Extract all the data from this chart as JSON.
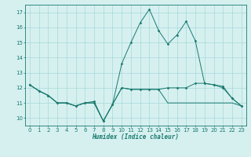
{
  "xlabel": "Humidex (Indice chaleur)",
  "x": [
    0,
    1,
    2,
    3,
    4,
    5,
    6,
    7,
    8,
    9,
    10,
    11,
    12,
    13,
    14,
    15,
    16,
    17,
    18,
    19,
    20,
    21,
    22,
    23
  ],
  "line1": [
    12.2,
    11.8,
    11.5,
    11.0,
    11.0,
    10.8,
    11.0,
    11.0,
    9.8,
    10.9,
    12.0,
    11.9,
    11.9,
    11.9,
    11.9,
    11.0,
    11.0,
    11.0,
    11.0,
    11.0,
    11.0,
    11.0,
    11.0,
    10.8
  ],
  "line2": [
    12.2,
    11.8,
    11.5,
    11.0,
    11.0,
    10.8,
    11.0,
    11.0,
    9.8,
    10.9,
    12.0,
    11.9,
    11.9,
    11.9,
    11.9,
    12.0,
    12.0,
    12.0,
    12.3,
    12.3,
    12.2,
    12.0,
    11.3,
    10.8
  ],
  "line3": [
    12.2,
    11.8,
    11.5,
    11.0,
    11.0,
    10.8,
    11.0,
    11.1,
    9.8,
    10.9,
    13.6,
    15.0,
    16.3,
    17.2,
    15.8,
    14.9,
    15.5,
    16.4,
    15.1,
    12.3,
    12.2,
    12.1,
    11.3,
    10.8
  ],
  "line_color": "#1a7a6e",
  "bg_color": "#d6f0f0",
  "grid_color": "#a8d8d8",
  "ylim": [
    9.5,
    17.5
  ],
  "yticks": [
    10,
    11,
    12,
    13,
    14,
    15,
    16,
    17
  ],
  "xticks": [
    0,
    1,
    2,
    3,
    4,
    5,
    6,
    7,
    8,
    9,
    10,
    11,
    12,
    13,
    14,
    15,
    16,
    17,
    18,
    19,
    20,
    21,
    22,
    23
  ]
}
